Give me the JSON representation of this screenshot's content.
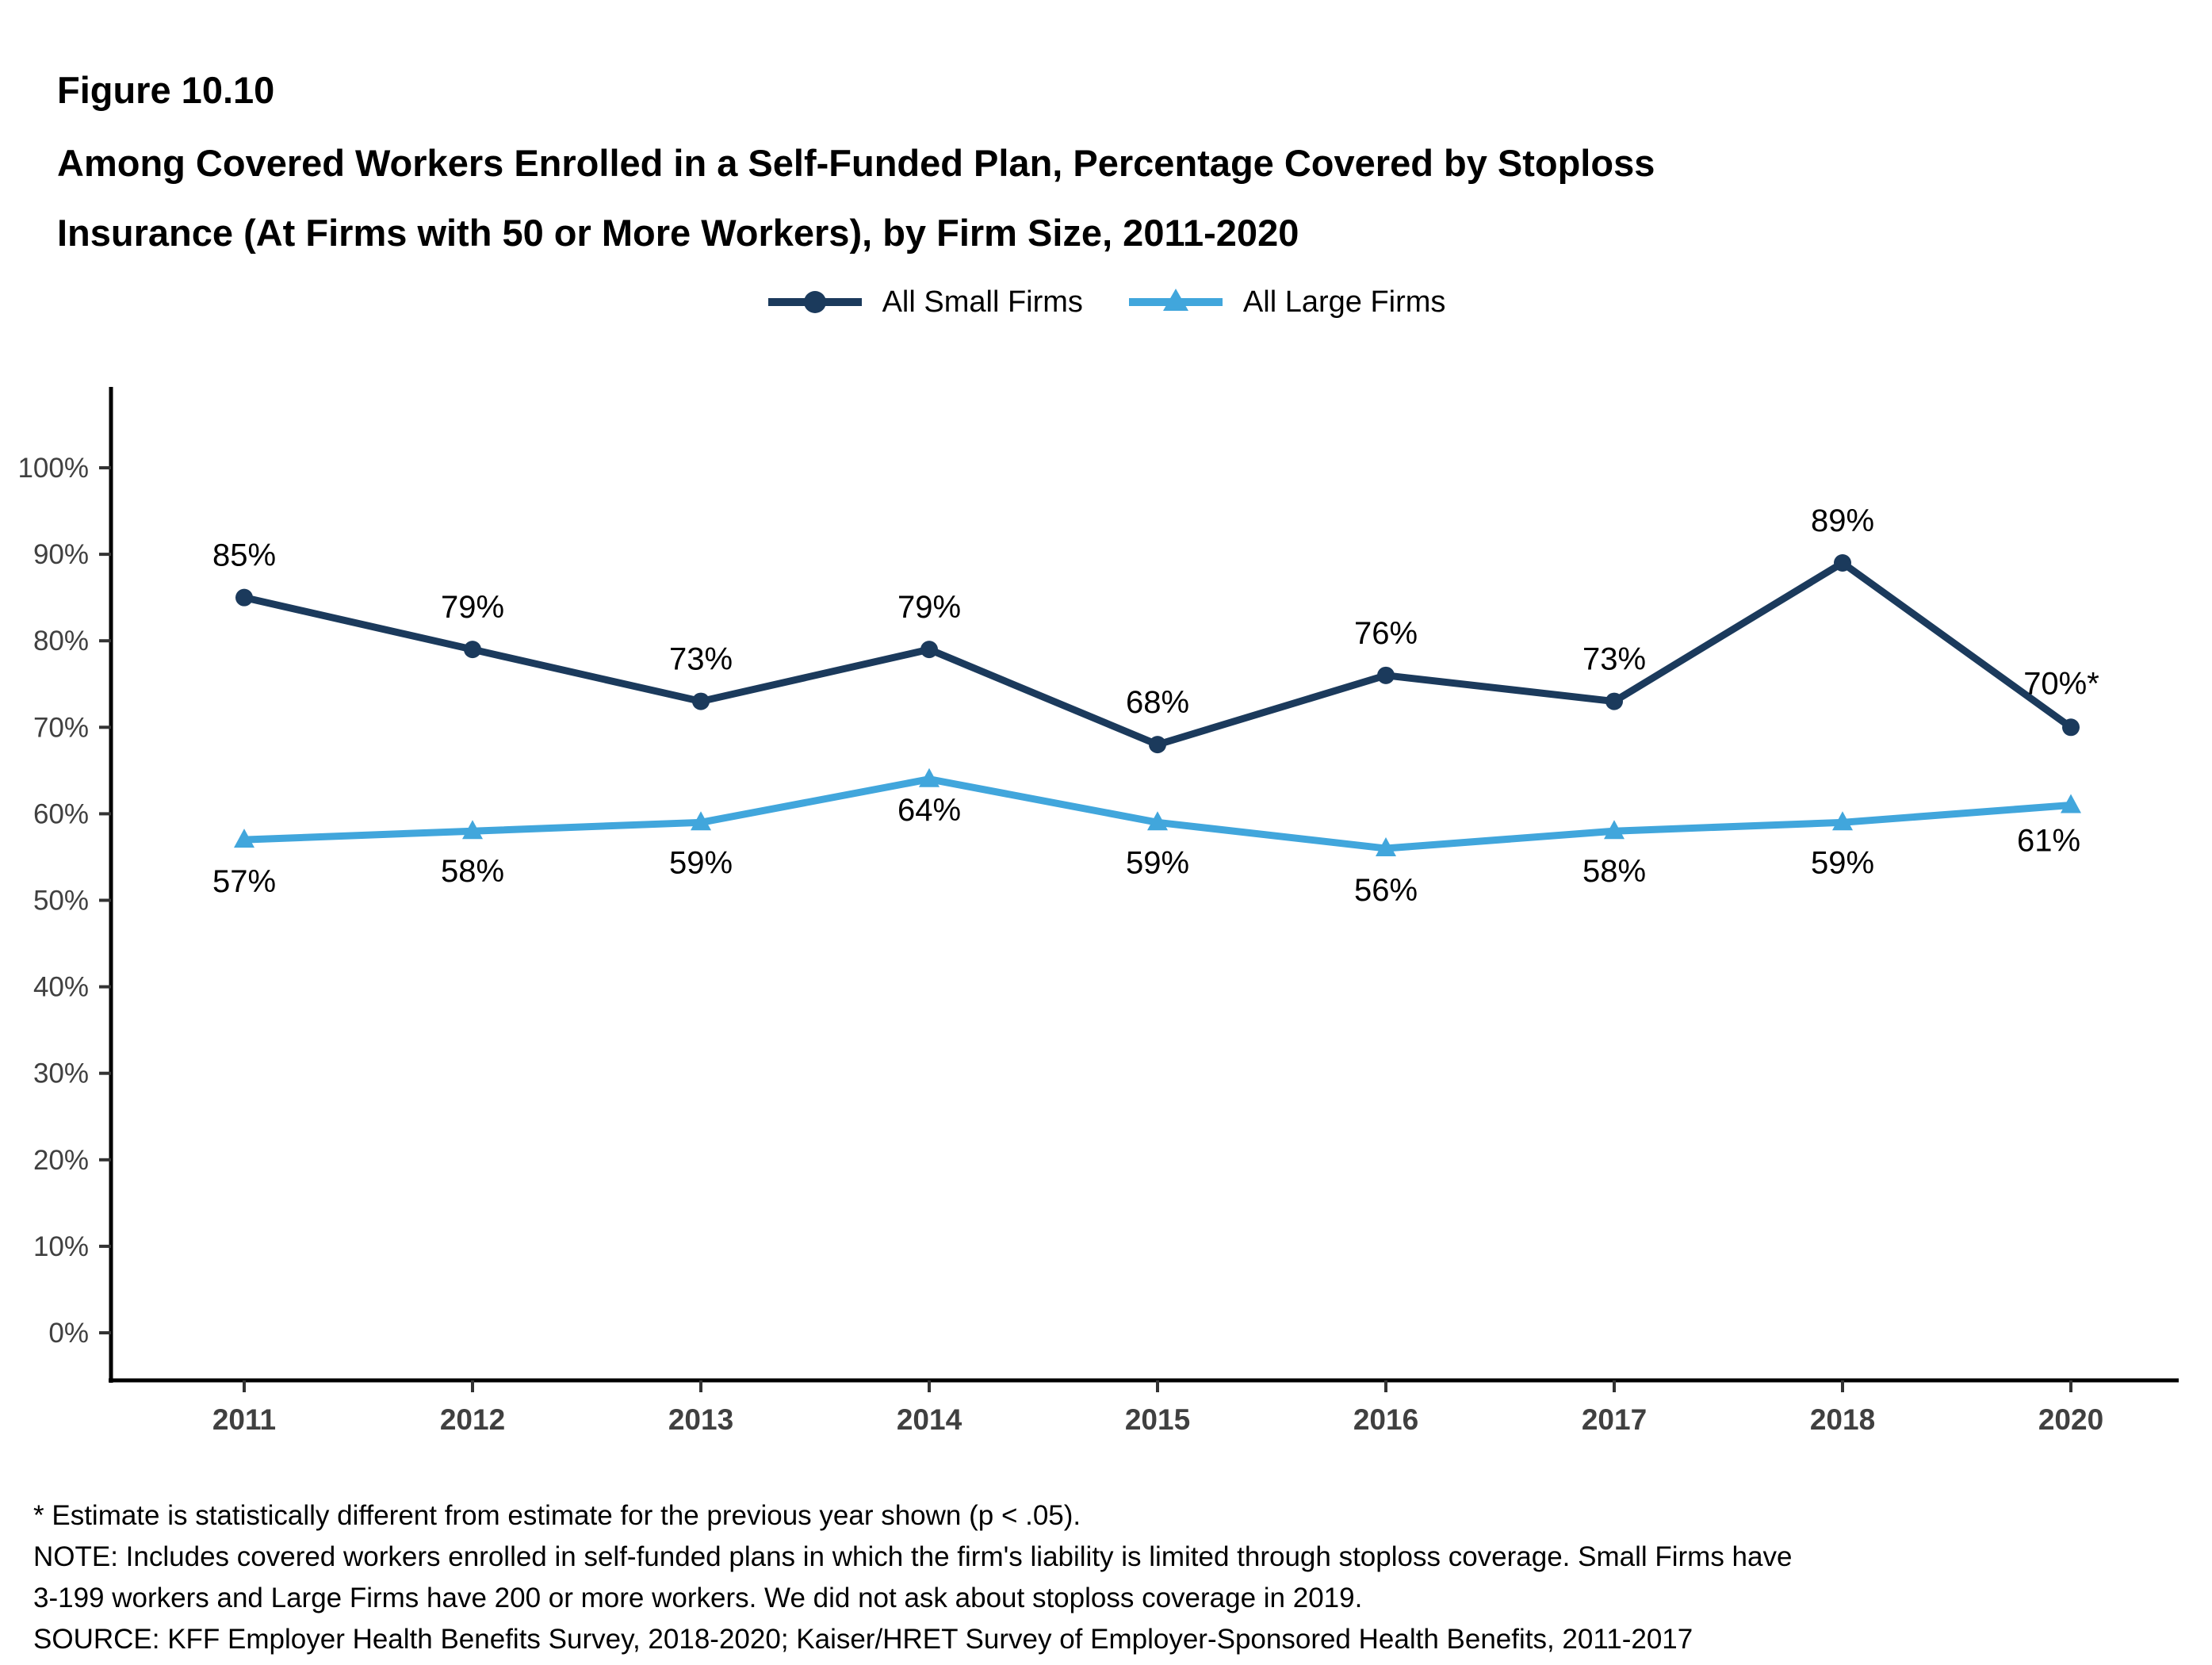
{
  "header": {
    "figure_label": "Figure 10.10",
    "title_lines": [
      "Among Covered Workers Enrolled in a Self-Funded Plan, Percentage Covered by Stoploss",
      "Insurance (At Firms with 50 or More Workers), by Firm Size, 2011-2020"
    ]
  },
  "legend": [
    {
      "label": "All Small Firms",
      "color": "#1b3a5c",
      "marker": "circle"
    },
    {
      "label": "All Large Firms",
      "color": "#41a6dc",
      "marker": "triangle"
    }
  ],
  "chart_data": {
    "type": "line",
    "title": "Among Covered Workers Enrolled in a Self-Funded Plan, Percentage Covered by Stoploss Insurance (At Firms with 50 or More Workers), by Firm Size, 2011-2020",
    "categories": [
      "2011",
      "2012",
      "2013",
      "2014",
      "2015",
      "2016",
      "2017",
      "2018",
      "2020"
    ],
    "series": [
      {
        "name": "All Small Firms",
        "color": "#1b3a5c",
        "marker": "circle",
        "values": [
          85,
          79,
          73,
          79,
          68,
          76,
          73,
          89,
          70
        ],
        "labels": [
          "85%",
          "79%",
          "73%",
          "79%",
          "68%",
          "76%",
          "73%",
          "89%",
          "70%*"
        ]
      },
      {
        "name": "All Large Firms",
        "color": "#41a6dc",
        "marker": "triangle",
        "values": [
          57,
          58,
          59,
          64,
          59,
          56,
          58,
          59,
          61
        ],
        "labels": [
          "57%",
          "58%",
          "59%",
          "64%",
          "59%",
          "56%",
          "58%",
          "59%",
          "61%"
        ]
      }
    ],
    "xlabel": "",
    "ylabel": "",
    "ylim": [
      0,
      100
    ],
    "y_ticks": [
      "0%",
      "10%",
      "20%",
      "30%",
      "40%",
      "50%",
      "60%",
      "70%",
      "80%",
      "90%",
      "100%"
    ],
    "grid": false,
    "legend_position": "top",
    "style": {
      "axis_color": "#000000",
      "tick_mark_color": "#333333",
      "tick_label_color": "#404040",
      "data_label_color": "#000000"
    }
  },
  "footnotes": [
    "* Estimate is statistically different from estimate for the previous year shown (p < .05).",
    "NOTE: Includes covered workers enrolled in self-funded plans in which the firm's liability is limited through stoploss coverage. Small Firms have",
    "3-199 workers and Large Firms have 200 or more workers. We did not ask about stoploss coverage in 2019.",
    "SOURCE: KFF Employer Health Benefits Survey, 2018-2020; Kaiser/HRET Survey of Employer-Sponsored Health Benefits, 2011-2017"
  ]
}
